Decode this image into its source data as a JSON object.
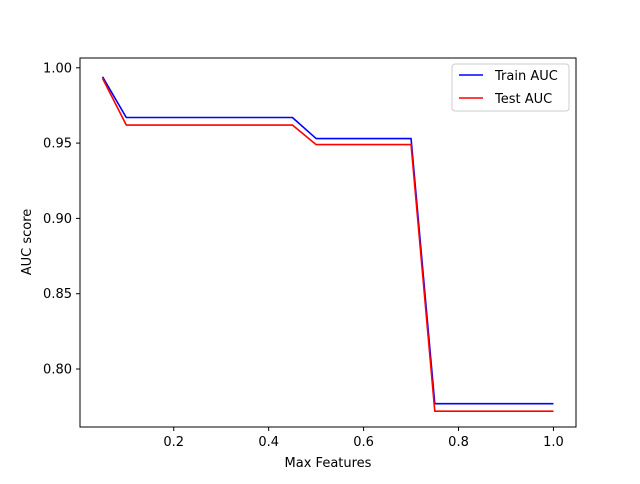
{
  "chart_data": {
    "type": "line",
    "title": "",
    "xlabel": "Max Features",
    "ylabel": "AUC score",
    "xlim": [
      0.0025,
      1.0475
    ],
    "ylim": [
      0.7615,
      1.0065
    ],
    "xticks": [
      0.2,
      0.4,
      0.6,
      0.8,
      1.0
    ],
    "xtick_labels": [
      "0.2",
      "0.4",
      "0.6",
      "0.8",
      "1.0"
    ],
    "yticks": [
      0.8,
      0.85,
      0.9,
      0.95,
      1.0
    ],
    "ytick_labels": [
      "0.80",
      "0.85",
      "0.90",
      "0.95",
      "1.00"
    ],
    "grid": false,
    "legend": {
      "position": "top-right"
    },
    "x": [
      0.05,
      0.1,
      0.15,
      0.2,
      0.25,
      0.3,
      0.35,
      0.4,
      0.45,
      0.5,
      0.55,
      0.6,
      0.65,
      0.7,
      0.75,
      0.8,
      0.85,
      0.9,
      0.95,
      1.0
    ],
    "series": [
      {
        "name": "Train AUC",
        "color": "#0000ff",
        "values": [
          0.994,
          0.967,
          0.967,
          0.967,
          0.967,
          0.967,
          0.967,
          0.967,
          0.967,
          0.953,
          0.953,
          0.953,
          0.953,
          0.953,
          0.777,
          0.777,
          0.777,
          0.777,
          0.777,
          0.777
        ]
      },
      {
        "name": "Test AUC",
        "color": "#ff0000",
        "values": [
          0.993,
          0.962,
          0.962,
          0.962,
          0.962,
          0.962,
          0.962,
          0.962,
          0.962,
          0.949,
          0.949,
          0.949,
          0.949,
          0.949,
          0.772,
          0.772,
          0.772,
          0.772,
          0.772,
          0.772
        ]
      }
    ]
  }
}
